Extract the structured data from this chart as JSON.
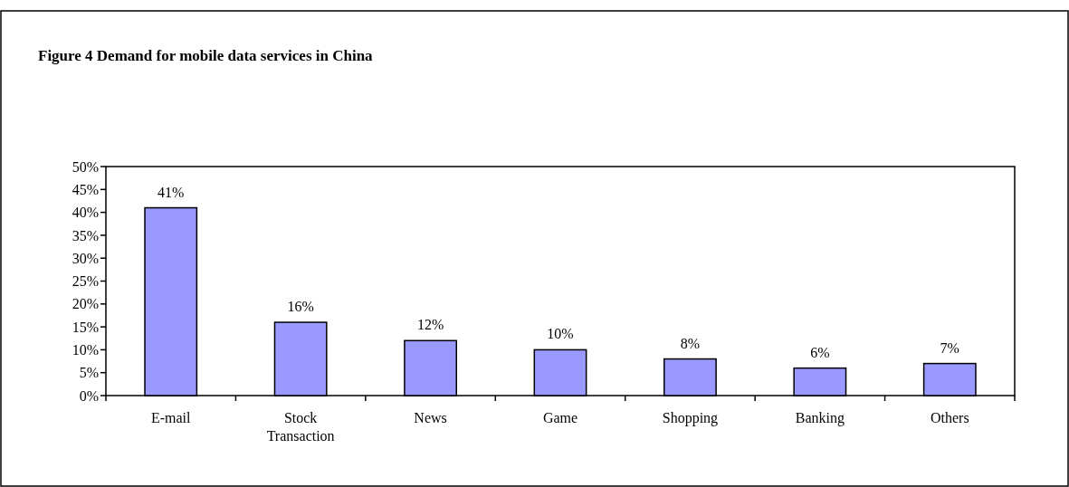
{
  "chart_data": {
    "type": "bar",
    "title": "Figure 4 Demand for mobile data services in China",
    "categories": [
      "E-mail",
      "Stock Transaction",
      "News",
      "Game",
      "Shopping",
      "Banking",
      "Others"
    ],
    "values": [
      41,
      16,
      12,
      10,
      8,
      6,
      7
    ],
    "value_labels": [
      "41%",
      "16%",
      "12%",
      "10%",
      "8%",
      "6%",
      "7%"
    ],
    "color": "#9999ff",
    "ylim": [
      0,
      50
    ],
    "yticks": [
      {
        "value": 0,
        "label": "0%"
      },
      {
        "value": 5,
        "label": "5%"
      },
      {
        "value": 10,
        "label": "10%"
      },
      {
        "value": 15,
        "label": "15%"
      },
      {
        "value": 20,
        "label": "20%"
      },
      {
        "value": 25,
        "label": "25%"
      },
      {
        "value": 30,
        "label": "30%"
      },
      {
        "value": 35,
        "label": "35%"
      },
      {
        "value": 40,
        "label": "40%"
      },
      {
        "value": 45,
        "label": "45%"
      },
      {
        "value": 50,
        "label": "50%"
      }
    ],
    "grid": false
  }
}
